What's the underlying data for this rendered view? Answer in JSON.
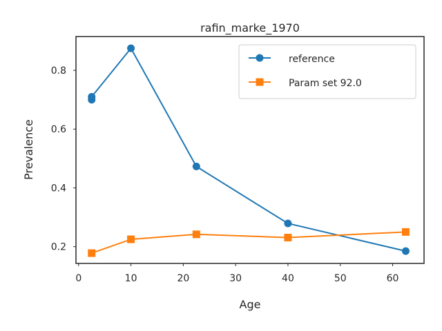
{
  "chart_data": {
    "type": "line",
    "title": "rafin_marke_1970",
    "xlabel": "Age",
    "ylabel": "Prevalence",
    "xlim": [
      -0.5,
      66
    ],
    "ylim": [
      0.143,
      0.915
    ],
    "xticks": [
      0,
      10,
      20,
      30,
      40,
      50,
      60
    ],
    "yticks": [
      0.2,
      0.4,
      0.6,
      0.8
    ],
    "xtick_labels": [
      "0",
      "10",
      "20",
      "30",
      "40",
      "50",
      "60"
    ],
    "ytick_labels": [
      "0.2",
      "0.4",
      "0.6",
      "0.8"
    ],
    "grid": false,
    "legend_position": "top-right",
    "series": [
      {
        "name": "reference",
        "color": "#1f77b4",
        "marker": "circle",
        "x": [
          2.5,
          2.5,
          10,
          22.5,
          40,
          62.5
        ],
        "y": [
          0.7,
          0.71,
          0.875,
          0.473,
          0.279,
          0.185
        ]
      },
      {
        "name": "Param set 92.0",
        "color": "#ff7f0e",
        "marker": "square",
        "x": [
          2.5,
          10,
          22.5,
          40,
          62.5
        ],
        "y": [
          0.178,
          0.225,
          0.242,
          0.231,
          0.25
        ]
      }
    ]
  }
}
